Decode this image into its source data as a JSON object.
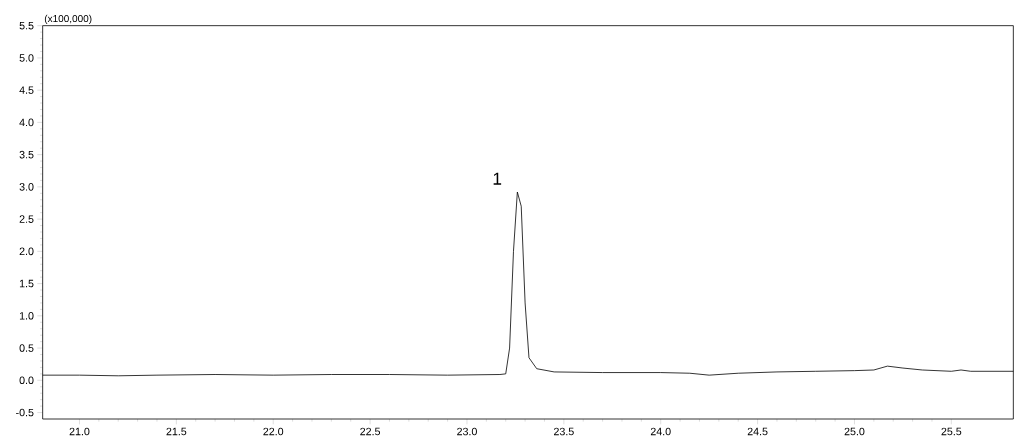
{
  "chart_data": {
    "type": "line",
    "x": [
      20.81,
      21.0,
      21.2,
      21.4,
      21.7,
      22.0,
      22.3,
      22.6,
      22.9,
      23.17,
      23.2,
      23.22,
      23.24,
      23.26,
      23.28,
      23.3,
      23.32,
      23.36,
      23.45,
      23.7,
      24.0,
      24.15,
      24.25,
      24.4,
      24.6,
      24.8,
      25.0,
      25.1,
      25.17,
      25.25,
      25.35,
      25.5,
      25.55,
      25.6,
      25.82
    ],
    "series": [
      {
        "color": "#000000",
        "values": [
          0.08,
          0.08,
          0.07,
          0.08,
          0.09,
          0.08,
          0.09,
          0.09,
          0.08,
          0.09,
          0.1,
          0.5,
          2.0,
          2.92,
          2.7,
          1.2,
          0.35,
          0.18,
          0.13,
          0.12,
          0.12,
          0.11,
          0.08,
          0.11,
          0.13,
          0.14,
          0.15,
          0.16,
          0.22,
          0.19,
          0.16,
          0.14,
          0.16,
          0.14,
          0.14
        ]
      }
    ],
    "xlim": [
      20.81,
      25.82
    ],
    "ylim": [
      -0.6,
      5.5
    ],
    "xticks": [
      {
        "value": 21,
        "label": "21.0"
      },
      {
        "value": 21.5,
        "label": "21.5"
      },
      {
        "value": 22,
        "label": "22.0"
      },
      {
        "value": 22.5,
        "label": "22.5"
      },
      {
        "value": 23,
        "label": "23.0"
      },
      {
        "value": 23.5,
        "label": "23.5"
      },
      {
        "value": 24,
        "label": "24.0"
      },
      {
        "value": 24.5,
        "label": "24.5"
      },
      {
        "value": 25,
        "label": "25.0"
      },
      {
        "value": 25.5,
        "label": "25.5"
      }
    ],
    "yticks": [
      {
        "value": -0.5,
        "label": "-0.5"
      },
      {
        "value": 0,
        "label": "0.0"
      },
      {
        "value": 0.5,
        "label": "0.5"
      },
      {
        "value": 1,
        "label": "1.0"
      },
      {
        "value": 1.5,
        "label": "1.5"
      },
      {
        "value": 2,
        "label": "2.0"
      },
      {
        "value": 2.5,
        "label": "2.5"
      },
      {
        "value": 3,
        "label": "3.0"
      },
      {
        "value": 3.5,
        "label": "3.5"
      },
      {
        "value": 4,
        "label": "4.0"
      },
      {
        "value": 4.5,
        "label": "4.5"
      },
      {
        "value": 5,
        "label": "5.0"
      },
      {
        "value": 5.5,
        "label": "5.5"
      }
    ],
    "annotations": [
      "(x100,000)",
      {
        "text": "1",
        "x": 23.26,
        "y": 2.92
      }
    ],
    "grid": false,
    "marker": "none",
    "line_style": "solid"
  }
}
